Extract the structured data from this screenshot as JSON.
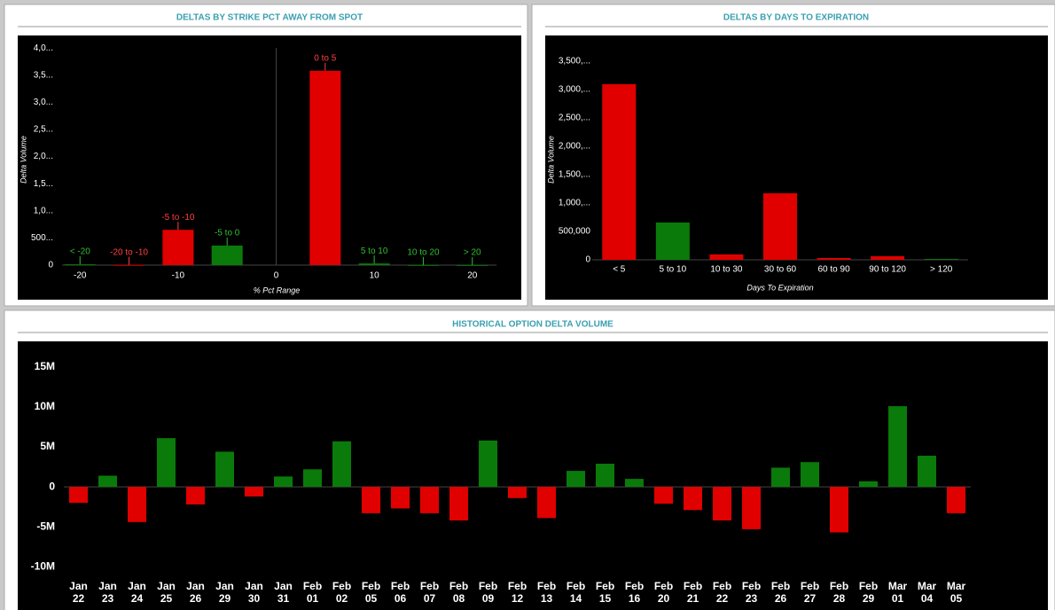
{
  "chart_data": [
    {
      "type": "bar",
      "title": "DELTAS BY STRIKE PCT AWAY FROM SPOT",
      "x_label": "% Pct Range",
      "y_label": "Delta Volume",
      "x": [
        -20,
        -15,
        -10,
        -5,
        5,
        10,
        15,
        20
      ],
      "categories": [
        "< -20",
        "-20 to -10",
        "-5 to -10",
        "-5 to 0",
        "0 to 5",
        "5 to 10",
        "10 to 20",
        "> 20"
      ],
      "values": [
        15000,
        5000,
        650000,
        360000,
        3580000,
        30000,
        3000,
        2000
      ],
      "colors": [
        "#0a7a0a",
        "#e00000",
        "#e00000",
        "#0a7a0a",
        "#e00000",
        "#0a7a0a",
        "#0a7a0a",
        "#0a7a0a"
      ],
      "label_colors": [
        "#2fbf2f",
        "#ff4040",
        "#ff4040",
        "#2fbf2f",
        "#ff4040",
        "#2fbf2f",
        "#2fbf2f",
        "#2fbf2f"
      ],
      "xlim": [
        -24,
        24
      ],
      "xticks": [
        -20,
        -10,
        0,
        10,
        20
      ],
      "ylim": [
        0,
        4100000
      ],
      "yticks": [
        0,
        {
          "value": 500000,
          "label": "500..."
        },
        {
          "value": 1000000,
          "label": "1,0..."
        },
        {
          "value": 1500000,
          "label": "1,5..."
        },
        {
          "value": 2000000,
          "label": "2,0..."
        },
        {
          "value": 2500000,
          "label": "2,5..."
        },
        {
          "value": 3000000,
          "label": "3,0..."
        },
        {
          "value": 3500000,
          "label": "3,5..."
        },
        {
          "value": 4000000,
          "label": "4,0..."
        }
      ]
    },
    {
      "type": "bar",
      "title": "DELTAS BY DAYS TO EXPIRATION",
      "x_label": "Days To Expiration",
      "y_label": "Delta Volume",
      "categories": [
        "< 5",
        "5 to 10",
        "10 to 30",
        "30 to 60",
        "60 to 90",
        "90 to 120",
        "> 120"
      ],
      "values": [
        3090000,
        656000,
        94000,
        1170000,
        31000,
        62000,
        15000
      ],
      "colors": [
        "#e00000",
        "#0a7a0a",
        "#e00000",
        "#e00000",
        "#e00000",
        "#e00000",
        "#0a7a0a"
      ],
      "ylim": [
        0,
        3650000
      ],
      "yticks": [
        0,
        {
          "value": 500000,
          "label": "500,000"
        },
        {
          "value": 1000000,
          "label": "1,000,..."
        },
        {
          "value": 1500000,
          "label": "1,500,..."
        },
        {
          "value": 2000000,
          "label": "2,000,..."
        },
        {
          "value": 2500000,
          "label": "2,500,..."
        },
        {
          "value": 3000000,
          "label": "3,000,..."
        },
        {
          "value": 3500000,
          "label": "3,500,..."
        }
      ]
    },
    {
      "type": "bar",
      "title": "HISTORICAL OPTION DELTA VOLUME",
      "categories": [
        "Jan 22",
        "Jan 23",
        "Jan 24",
        "Jan 25",
        "Jan 26",
        "Jan 29",
        "Jan 30",
        "Jan 31",
        "Feb 01",
        "Feb 02",
        "Feb 05",
        "Feb 06",
        "Feb 07",
        "Feb 08",
        "Feb 09",
        "Feb 12",
        "Feb 13",
        "Feb 14",
        "Feb 15",
        "Feb 16",
        "Feb 20",
        "Feb 21",
        "Feb 22",
        "Feb 23",
        "Feb 26",
        "Feb 27",
        "Feb 28",
        "Feb 29",
        "Mar 01",
        "Mar 04",
        "Mar 05"
      ],
      "values": [
        -2000000,
        1400000,
        -4400000,
        6100000,
        -2200000,
        4400000,
        -1200000,
        1300000,
        2200000,
        5700000,
        -3300000,
        -2700000,
        -3300000,
        -4200000,
        5800000,
        -1400000,
        -3900000,
        2000000,
        2900000,
        1000000,
        -2100000,
        -2900000,
        -4200000,
        -5300000,
        2400000,
        3100000,
        -5700000,
        700000,
        10100000,
        3900000,
        -3300000
      ],
      "positive_color": "#0a7a0a",
      "negative_color": "#e00000",
      "ylim": [
        -12300000,
        17100000
      ],
      "yticks": [
        {
          "value": -10000000,
          "label": "-10M"
        },
        {
          "value": -5000000,
          "label": "-5M"
        },
        0,
        {
          "value": 5000000,
          "label": "5M"
        },
        {
          "value": 10000000,
          "label": "10M"
        },
        {
          "value": 15000000,
          "label": "15M"
        }
      ]
    }
  ]
}
